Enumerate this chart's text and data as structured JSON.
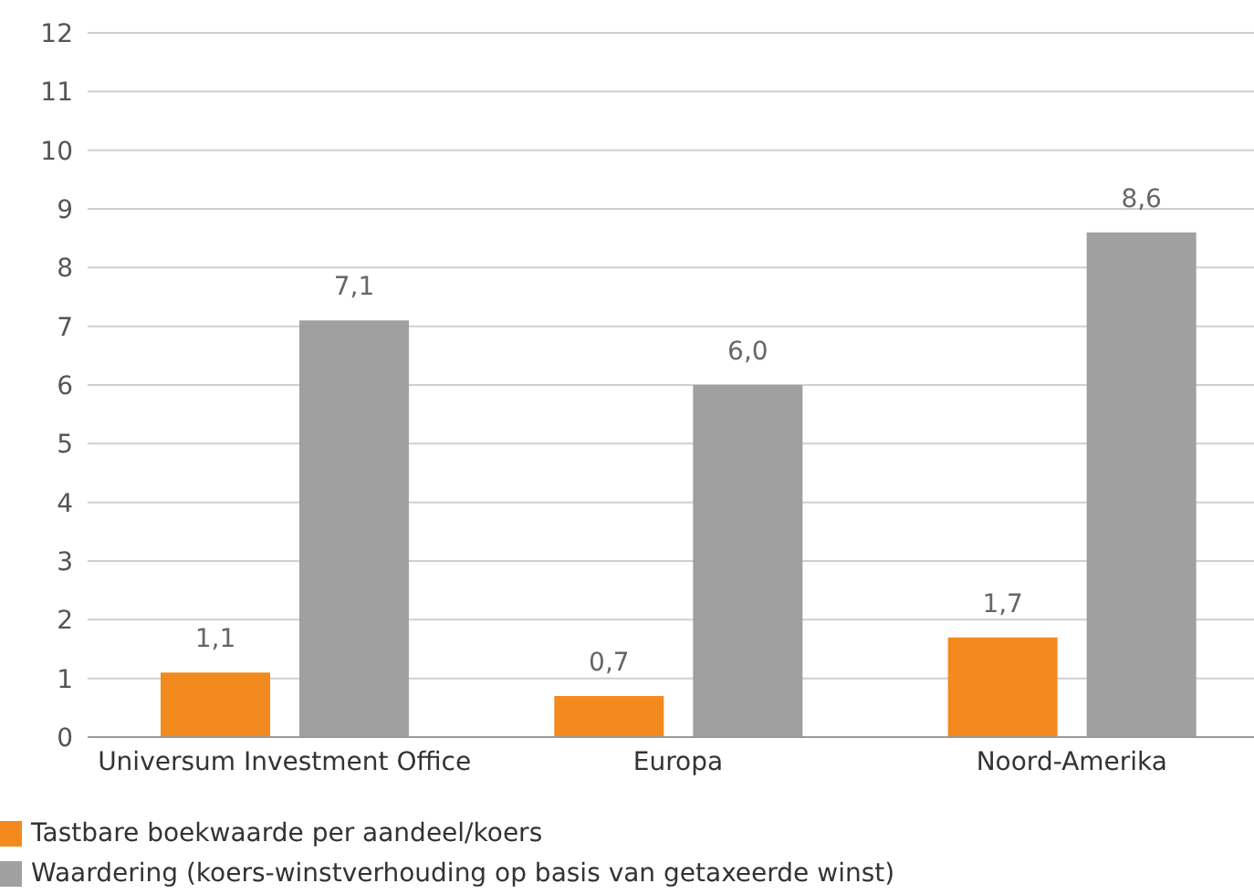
{
  "chart_data": {
    "type": "bar",
    "categories": [
      "Universum Investment Office",
      "Europa",
      "Noord-Amerika"
    ],
    "series": [
      {
        "name": "Tastbare boekwaarde per aandeel/koers",
        "color": "#f28a1e",
        "values": [
          1.1,
          0.7,
          1.7
        ],
        "value_labels": [
          "1,1",
          "0,7",
          "1,7"
        ]
      },
      {
        "name": "Waardering (koers-winstverhouding op basis van getaxeerde winst)",
        "color": "#a0a0a0",
        "values": [
          7.1,
          6.0,
          8.6
        ],
        "value_labels": [
          "7,1",
          "6,0",
          "8,6"
        ]
      }
    ],
    "ylim": [
      0,
      12
    ],
    "yticks": [
      0,
      1,
      2,
      3,
      4,
      5,
      6,
      7,
      8,
      9,
      10,
      11,
      12
    ],
    "grid": "y",
    "legend": "bottom left"
  }
}
